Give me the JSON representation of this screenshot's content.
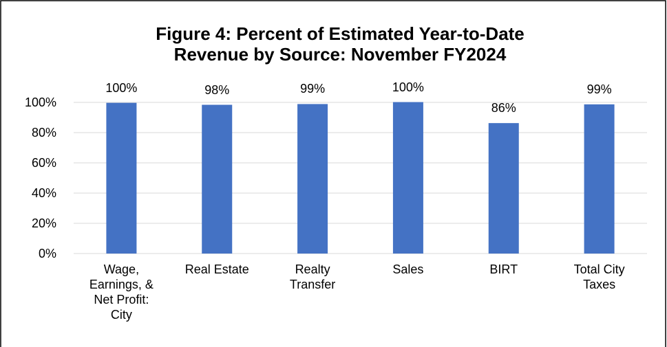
{
  "chart_data": {
    "type": "bar",
    "title": "Figure 4: Percent of Estimated Year-to-Date Revenue by Source: November FY2024",
    "categories": [
      "Wage, Earnings, & Net Profit: City",
      "Real Estate",
      "Realty Transfer",
      "Sales",
      "BIRT",
      "Total City Taxes"
    ],
    "values": [
      99.7,
      98.4,
      98.9,
      100.2,
      86.3,
      98.7
    ],
    "value_labels": [
      "100%",
      "98%",
      "99%",
      "100%",
      "86%",
      "99%"
    ],
    "color": "#4472c4",
    "ylim": [
      0,
      100
    ],
    "yticks": [
      {
        "value": 0,
        "label": "0%"
      },
      {
        "value": 20,
        "label": "20%"
      },
      {
        "value": 40,
        "label": "40%"
      },
      {
        "value": 60,
        "label": "60%"
      },
      {
        "value": 80,
        "label": "80%"
      },
      {
        "value": 100,
        "label": "100%"
      }
    ],
    "grid": true
  }
}
